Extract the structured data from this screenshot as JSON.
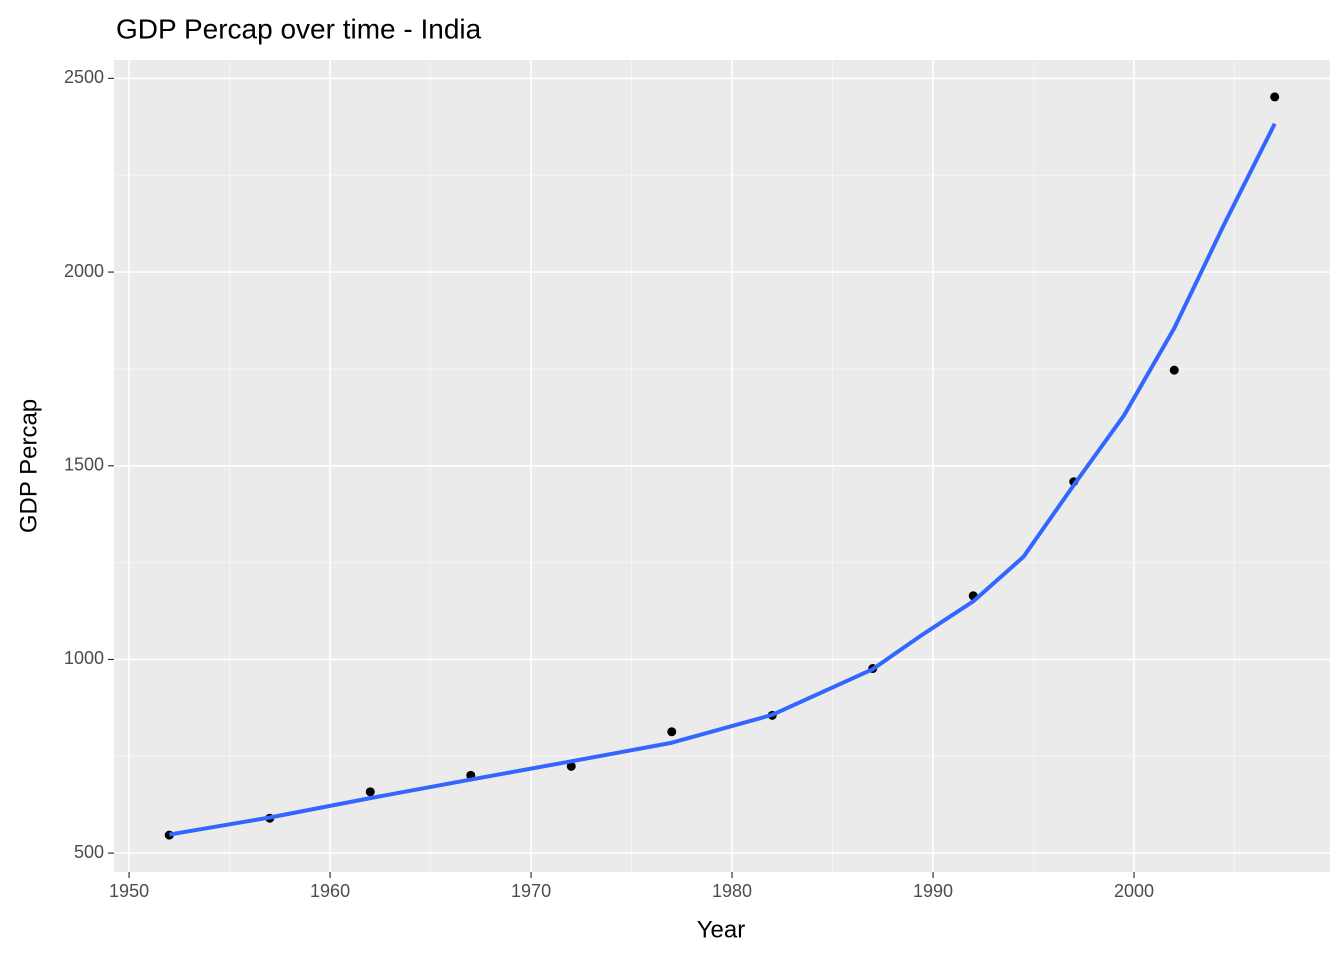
{
  "chart_data": {
    "type": "scatter",
    "title": "GDP Percap over time - India",
    "xlabel": "Year",
    "ylabel": "GDP Percap",
    "x": [
      1952,
      1957,
      1962,
      1967,
      1972,
      1977,
      1982,
      1987,
      1992,
      1997,
      2002,
      2007
    ],
    "values": [
      546.6,
      590.1,
      658.3,
      700.8,
      724.0,
      813.3,
      855.7,
      976.5,
      1164.4,
      1458.8,
      1746.8,
      2452.2
    ],
    "color": "#000000",
    "smooth": {
      "color": "#3366ff",
      "x": [
        1952,
        1957,
        1962,
        1967,
        1972,
        1977,
        1982,
        1987,
        1989.5,
        1992,
        1994.5,
        1997,
        1999.5,
        2002,
        2004.5,
        2007
      ],
      "values": [
        548,
        592,
        642,
        690,
        737,
        785,
        857,
        975,
        1065,
        1150,
        1265,
        1450,
        1630,
        1855,
        2125,
        2383
      ]
    },
    "xlim": [
      1949.25,
      2009.75
    ],
    "ylim": [
      451.3,
      2547.5
    ],
    "xticks": [
      1950,
      1960,
      1970,
      1980,
      1990,
      2000
    ],
    "yticks": [
      500,
      1000,
      1500,
      2000,
      2500
    ],
    "xminorticks": [
      1955,
      1965,
      1975,
      1985,
      1995,
      2005
    ],
    "yminorticks": [
      750,
      1250,
      1750,
      2250
    ],
    "grid": true
  }
}
